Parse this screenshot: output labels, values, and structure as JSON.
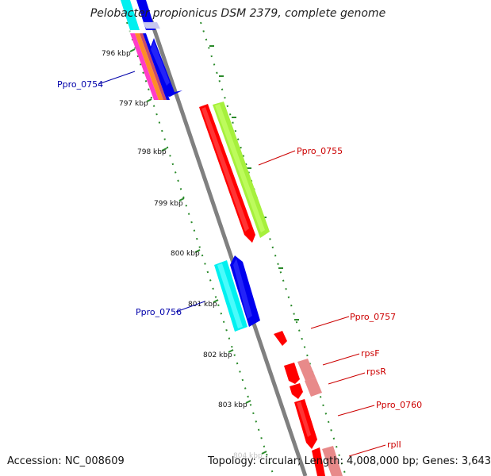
{
  "title": "Pelobacter propionicus DSM 2379, complete genome",
  "footer": {
    "accession": "Accession: NC_008609",
    "stats": "Topology: circular; Length: 4,008,000 bp; Genes: 3,643"
  },
  "scale_labels": [
    "796 kbp",
    "797 kbp",
    "798 kbp",
    "799 kbp",
    "800 kbp",
    "801 kbp",
    "802 kbp",
    "803 kbp",
    "804 kbp"
  ],
  "gene_labels": {
    "ppro_0754": "Ppro_0754",
    "ppro_0755": "Ppro_0755",
    "ppro_0756": "Ppro_0756",
    "ppro_0757": "Ppro_0757",
    "rpsF": "rpsF",
    "rpsR": "rpsR",
    "ppro_0760": "Ppro_0760",
    "rplI": "rplI"
  },
  "colors": {
    "forward_label": "#cc0000",
    "reverse_label": "#0000aa",
    "backbone": "#808080",
    "cds": "#ff0000",
    "cds_light": "#e88a8a",
    "gene_green": "#a6f03c",
    "gene_cyan": "#00f0f0",
    "gene_blue": "#0000ee",
    "gene_magenta": "#ff3cc8",
    "gene_orange": "#ff8c28",
    "ticks": "#2a8a2a"
  }
}
